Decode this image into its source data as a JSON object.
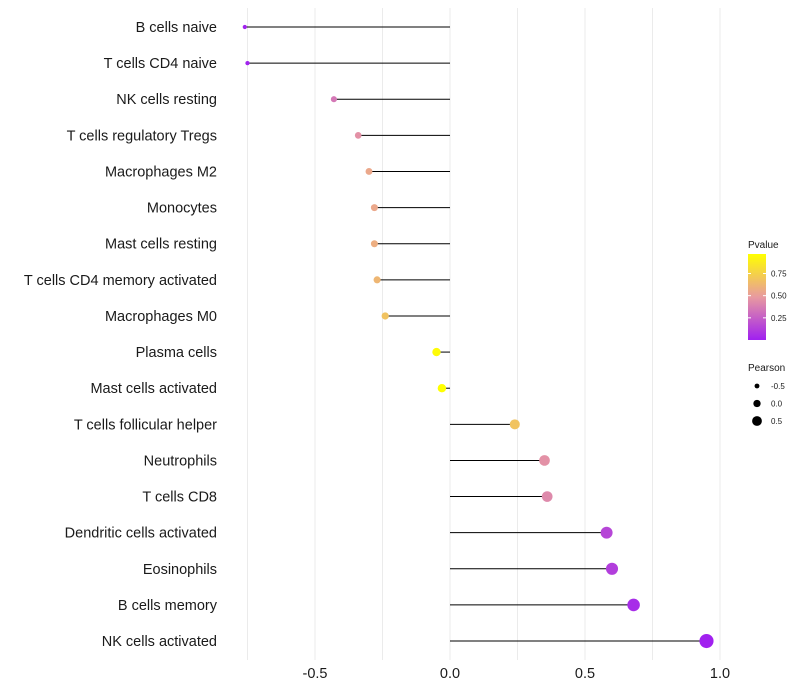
{
  "chart_data": {
    "type": "lollipop",
    "title": "",
    "xlabel": "",
    "ylabel": "",
    "xlim": [
      -0.8,
      1.0
    ],
    "x_ticks": [
      -0.5,
      0.0,
      0.5,
      1.0
    ],
    "x_tick_labels": [
      "-0.5",
      "0.0",
      "0.5",
      "1.0"
    ],
    "grid": "vertical",
    "categories": [
      "B cells naive",
      "T cells CD4 naive",
      "NK cells resting",
      "T cells regulatory  Tregs",
      "Macrophages M2",
      "Monocytes",
      "Mast cells resting",
      "T cells CD4 memory activated",
      "Macrophages M0",
      "Plasma cells",
      "Mast cells activated",
      "T cells follicular helper",
      "Neutrophils",
      "T cells CD8",
      "Dendritic cells activated",
      "Eosinophils",
      "B cells memory",
      "NK cells activated"
    ],
    "values": [
      -0.76,
      -0.75,
      -0.43,
      -0.34,
      -0.3,
      -0.28,
      -0.28,
      -0.27,
      -0.24,
      -0.05,
      -0.03,
      0.24,
      0.35,
      0.36,
      0.58,
      0.6,
      0.68,
      0.95
    ],
    "pvalues": [
      0.01,
      0.01,
      0.35,
      0.45,
      0.55,
      0.55,
      0.58,
      0.62,
      0.68,
      0.95,
      0.97,
      0.68,
      0.45,
      0.42,
      0.15,
      0.12,
      0.05,
      0.005
    ],
    "color_legend": {
      "title": "Pvalue",
      "labels": [
        "0.75",
        "0.50",
        "0.25"
      ],
      "values": [
        0.75,
        0.5,
        0.25
      ],
      "range": [
        0.0,
        0.97
      ],
      "low_color": "#a020f0",
      "mid_color": "#e89aa0",
      "high_color": "#ffff00"
    },
    "size_legend": {
      "title": "Pearson",
      "labels": [
        "-0.5",
        "0.0",
        "0.5"
      ],
      "values": [
        -0.5,
        0.0,
        0.5
      ]
    },
    "stem_color": "#000000",
    "grid_color": "#ebebeb"
  }
}
